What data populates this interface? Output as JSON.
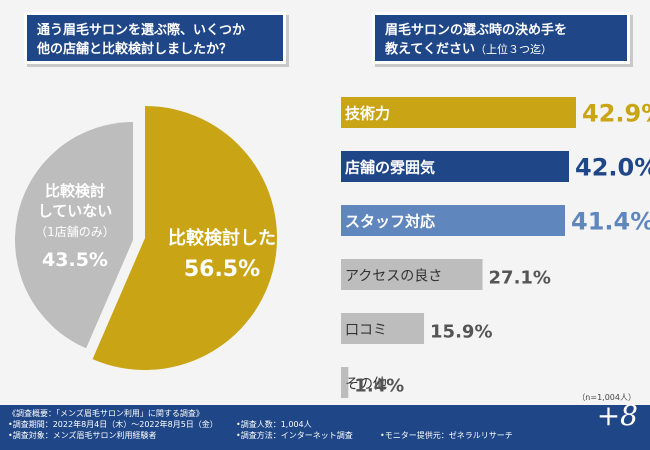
{
  "question1": {
    "line1": "通う眉毛サロンを選ぶ際、いくつか",
    "line2": "他の店舗と比較検討しましたか？"
  },
  "question2": {
    "line1": "眉毛サロンの選ぶ時の決め手を",
    "line2_main": "教えてください",
    "line2_note": "（上位３つ迄）"
  },
  "chart_data": [
    {
      "type": "pie",
      "slices": [
        {
          "label": "比較検討した",
          "value": 56.5,
          "value_text": "56.5%",
          "color": "#c9a414",
          "label_color": "#ffffff"
        },
        {
          "label_lines": [
            "比較検討",
            "していない",
            "（1店舗のみ）"
          ],
          "value": 43.5,
          "value_text": "43.5%",
          "color": "#bdbdbd",
          "label_color": "#ffffff"
        }
      ]
    },
    {
      "type": "bar",
      "orientation": "horizontal",
      "categories": [
        "技術力",
        "店舗の雰囲気",
        "スタッフ対応",
        "アクセスの良さ",
        "口コミ",
        "その他"
      ],
      "values": [
        42.9,
        42.0,
        41.4,
        27.1,
        15.9,
        1.4
      ],
      "value_labels": [
        "42.9%",
        "42.0%",
        "41.4%",
        "27.1%",
        "15.9%",
        "1.4%"
      ],
      "colors": [
        "#c9a414",
        "#1f4687",
        "#5f86bd",
        "#bdbdbd",
        "#bdbdbd",
        "#bdbdbd"
      ],
      "label_colors": [
        "#ffffff",
        "#ffffff",
        "#ffffff",
        "#333333",
        "#333333",
        "#333333"
      ],
      "value_colors": [
        "#c9a414",
        "#1f4687",
        "#5f86bd",
        "#555555",
        "#555555",
        "#555555"
      ],
      "xlim": [
        0,
        45
      ]
    }
  ],
  "note": "（n=1,004人）",
  "footer": {
    "survey_title": "《調査概要：「メンズ眉毛サロン利用」に関する調査》",
    "period": "•調査期間：2022年8月4日（木）～2022年8月5日（金）",
    "target": "•調査対象：メンズ眉毛サロン利用経験者",
    "count": "•調査人数：1,004人",
    "method": "•調査方法：インターネット調査",
    "provider": "•モニター提供元：ゼネラルリサーチ",
    "logo": "+8"
  },
  "colors": {
    "navy": "#1f4687",
    "gold": "#c9a414",
    "gray": "#bdbdbd",
    "lightblue": "#5f86bd"
  }
}
